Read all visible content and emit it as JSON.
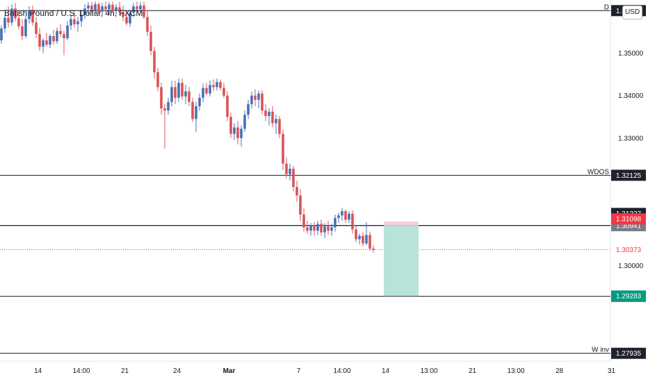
{
  "header": {
    "title": "British Pound / U.S. Dollar, 4h, FXCM",
    "currency_button": "USD"
  },
  "colors": {
    "up": "#4a6fb5",
    "down": "#d7545a",
    "line": "#131722",
    "tag_dark": "#1e222d",
    "tag_red": "#f23645",
    "tag_gray": "#787b86",
    "tag_green": "#089981",
    "profit_zone": "#b7e3d9",
    "loss_zone": "#f8cfd3",
    "current_price_line": "#f23645"
  },
  "chart_data": {
    "type": "candlestick",
    "symbol": "GBPUSD",
    "timeframe": "4h",
    "y_axis": {
      "range": [
        1.2775,
        1.3625
      ],
      "ticks": [
        {
          "value": 1.35,
          "label": "1.35000"
        },
        {
          "value": 1.34,
          "label": "1.34000"
        },
        {
          "value": 1.33,
          "label": "1.33000"
        },
        {
          "value": 1.3,
          "label": "1.30000"
        }
      ]
    },
    "x_axis": {
      "range": [
        0,
        108
      ],
      "ticks": [
        {
          "index": 10.5,
          "label": "14"
        },
        {
          "index": 23,
          "label": "14:00"
        },
        {
          "index": 35.5,
          "label": "21"
        },
        {
          "index": 50.5,
          "label": "24"
        },
        {
          "index": 65.5,
          "label": "Mar"
        },
        {
          "index": 85.5,
          "label": "7"
        },
        {
          "index": 98,
          "label": "14:00"
        },
        {
          "index": 110.5,
          "label": "14"
        },
        {
          "index": 123,
          "label": "13:00"
        },
        {
          "index": 135.5,
          "label": "21"
        },
        {
          "index": 148,
          "label": "13:00"
        },
        {
          "index": 160.5,
          "label": "28"
        },
        {
          "index": 175.5,
          "label": "31"
        }
      ]
    },
    "candles": [
      [
        1.353,
        1.3565,
        1.3522,
        1.3558
      ],
      [
        1.3558,
        1.359,
        1.3548,
        1.3583
      ],
      [
        1.3583,
        1.361,
        1.356,
        1.3572
      ],
      [
        1.3572,
        1.3615,
        1.3565,
        1.3605
      ],
      [
        1.3605,
        1.3618,
        1.3575,
        1.3582
      ],
      [
        1.3582,
        1.3598,
        1.3555,
        1.3563
      ],
      [
        1.3563,
        1.358,
        1.353,
        1.354
      ],
      [
        1.354,
        1.3588,
        1.3535,
        1.358
      ],
      [
        1.358,
        1.361,
        1.357,
        1.36
      ],
      [
        1.36,
        1.3612,
        1.3565,
        1.3572
      ],
      [
        1.3572,
        1.3585,
        1.3535,
        1.3545
      ],
      [
        1.3545,
        1.356,
        1.3505,
        1.3515
      ],
      [
        1.3515,
        1.3535,
        1.35,
        1.353
      ],
      [
        1.353,
        1.3548,
        1.3515,
        1.352
      ],
      [
        1.352,
        1.3545,
        1.3512,
        1.354
      ],
      [
        1.354,
        1.3555,
        1.352,
        1.3528
      ],
      [
        1.3528,
        1.356,
        1.3522,
        1.3552
      ],
      [
        1.3552,
        1.3568,
        1.3538,
        1.3545
      ],
      [
        1.3545,
        1.3552,
        1.3495,
        1.3535
      ],
      [
        1.3535,
        1.3575,
        1.353,
        1.3565
      ],
      [
        1.3565,
        1.359,
        1.3555,
        1.358
      ],
      [
        1.358,
        1.3598,
        1.356,
        1.3568
      ],
      [
        1.3568,
        1.3585,
        1.355,
        1.3575
      ],
      [
        1.3575,
        1.36,
        1.3562,
        1.359
      ],
      [
        1.359,
        1.3615,
        1.358,
        1.3605
      ],
      [
        1.3605,
        1.362,
        1.359,
        1.3612
      ],
      [
        1.3612,
        1.362,
        1.3595,
        1.36
      ],
      [
        1.36,
        1.3622,
        1.3592,
        1.3615
      ],
      [
        1.3615,
        1.362,
        1.3592,
        1.3598
      ],
      [
        1.3598,
        1.3618,
        1.359,
        1.361
      ],
      [
        1.361,
        1.3621,
        1.3595,
        1.3603
      ],
      [
        1.3603,
        1.362,
        1.359,
        1.3614
      ],
      [
        1.3614,
        1.3621,
        1.3596,
        1.36
      ],
      [
        1.36,
        1.3615,
        1.359,
        1.3608
      ],
      [
        1.3608,
        1.3621,
        1.359,
        1.3597
      ],
      [
        1.3597,
        1.3612,
        1.3575,
        1.3585
      ],
      [
        1.3585,
        1.3598,
        1.3565,
        1.357
      ],
      [
        1.357,
        1.36,
        1.3562,
        1.3595
      ],
      [
        1.3595,
        1.3618,
        1.3585,
        1.361
      ],
      [
        1.361,
        1.3621,
        1.3595,
        1.3603
      ],
      [
        1.3603,
        1.3621,
        1.3595,
        1.3612
      ],
      [
        1.3612,
        1.3621,
        1.358,
        1.3585
      ],
      [
        1.3585,
        1.36,
        1.354,
        1.355
      ],
      [
        1.355,
        1.3565,
        1.3495,
        1.3505
      ],
      [
        1.3505,
        1.3515,
        1.344,
        1.3455
      ],
      [
        1.3455,
        1.3465,
        1.341,
        1.342
      ],
      [
        1.342,
        1.343,
        1.3355,
        1.337
      ],
      [
        1.337,
        1.338,
        1.3275,
        1.3365
      ],
      [
        1.3365,
        1.3395,
        1.3355,
        1.3385
      ],
      [
        1.3385,
        1.3435,
        1.3375,
        1.342
      ],
      [
        1.342,
        1.3435,
        1.338,
        1.3395
      ],
      [
        1.3395,
        1.344,
        1.3385,
        1.343
      ],
      [
        1.343,
        1.344,
        1.339,
        1.3398
      ],
      [
        1.3398,
        1.3425,
        1.338,
        1.341
      ],
      [
        1.341,
        1.342,
        1.3375,
        1.3385
      ],
      [
        1.3385,
        1.3395,
        1.3338,
        1.3345
      ],
      [
        1.3345,
        1.3385,
        1.3315,
        1.3375
      ],
      [
        1.3375,
        1.3405,
        1.3365,
        1.3395
      ],
      [
        1.3395,
        1.3428,
        1.3385,
        1.3418
      ],
      [
        1.3418,
        1.343,
        1.34,
        1.3405
      ],
      [
        1.3405,
        1.3435,
        1.3398,
        1.3425
      ],
      [
        1.3425,
        1.3438,
        1.341,
        1.342
      ],
      [
        1.342,
        1.344,
        1.3412,
        1.3432
      ],
      [
        1.3432,
        1.3438,
        1.3412,
        1.3418
      ],
      [
        1.3418,
        1.343,
        1.3395,
        1.34
      ],
      [
        1.34,
        1.341,
        1.334,
        1.335
      ],
      [
        1.335,
        1.336,
        1.33,
        1.331
      ],
      [
        1.331,
        1.3335,
        1.3295,
        1.3325
      ],
      [
        1.3325,
        1.334,
        1.3285,
        1.33
      ],
      [
        1.33,
        1.333,
        1.328,
        1.3322
      ],
      [
        1.3322,
        1.3365,
        1.3315,
        1.3355
      ],
      [
        1.3355,
        1.339,
        1.3345,
        1.338
      ],
      [
        1.338,
        1.341,
        1.337,
        1.34
      ],
      [
        1.34,
        1.3415,
        1.3375,
        1.339
      ],
      [
        1.339,
        1.3412,
        1.337,
        1.3405
      ],
      [
        1.3405,
        1.3412,
        1.3355,
        1.3365
      ],
      [
        1.3365,
        1.338,
        1.334,
        1.3352
      ],
      [
        1.3352,
        1.337,
        1.333,
        1.3362
      ],
      [
        1.3362,
        1.3375,
        1.3325,
        1.3335
      ],
      [
        1.3335,
        1.3355,
        1.331,
        1.3345
      ],
      [
        1.3345,
        1.3352,
        1.33,
        1.331
      ],
      [
        1.331,
        1.332,
        1.3225,
        1.324
      ],
      [
        1.324,
        1.3255,
        1.3205,
        1.3215
      ],
      [
        1.3215,
        1.324,
        1.32,
        1.3228
      ],
      [
        1.3228,
        1.3235,
        1.3175,
        1.3185
      ],
      [
        1.3185,
        1.32,
        1.315,
        1.3165
      ],
      [
        1.3165,
        1.318,
        1.3105,
        1.312
      ],
      [
        1.312,
        1.3135,
        1.308,
        1.309
      ],
      [
        1.309,
        1.3105,
        1.3075,
        1.3082
      ],
      [
        1.3082,
        1.31,
        1.307,
        1.3095
      ],
      [
        1.3095,
        1.3102,
        1.307,
        1.3082
      ],
      [
        1.3082,
        1.3105,
        1.3072,
        1.3098
      ],
      [
        1.3098,
        1.3108,
        1.307,
        1.3078
      ],
      [
        1.3078,
        1.31,
        1.3065,
        1.3092
      ],
      [
        1.3092,
        1.3105,
        1.3072,
        1.3082
      ],
      [
        1.3082,
        1.3098,
        1.307,
        1.309
      ],
      [
        1.309,
        1.312,
        1.308,
        1.3112
      ],
      [
        1.3112,
        1.3125,
        1.31,
        1.3118
      ],
      [
        1.3118,
        1.3135,
        1.3105,
        1.3128
      ],
      [
        1.3128,
        1.3132,
        1.31,
        1.3108
      ],
      [
        1.3108,
        1.3128,
        1.31,
        1.3122
      ],
      [
        1.3122,
        1.313,
        1.3075,
        1.3085
      ],
      [
        1.3085,
        1.3095,
        1.3055,
        1.3062
      ],
      [
        1.3062,
        1.3075,
        1.305,
        1.307
      ],
      [
        1.307,
        1.3078,
        1.3045,
        1.3052
      ],
      [
        1.3052,
        1.3102,
        1.3048,
        1.3072
      ],
      [
        1.3072,
        1.308,
        1.3035,
        1.304
      ],
      [
        1.304,
        1.3048,
        1.303,
        1.3037
      ]
    ],
    "horizontal_levels": [
      {
        "price": 1.36,
        "label": "D",
        "tag": "1.36000"
      },
      {
        "price": 1.32125,
        "label": "WDOS",
        "tag": "1.32125"
      },
      {
        "price": 1.30943,
        "label": "",
        "tag": "1.30943"
      },
      {
        "price": 1.30941,
        "label": "",
        "tag": "1.30941"
      },
      {
        "price": 1.29277,
        "label": "",
        "tag": "1.29277"
      },
      {
        "price": 1.27935,
        "label": "W inv",
        "tag": "1.27935"
      }
    ],
    "price_tags": [
      {
        "price": 1.31227,
        "tag": "1.31227",
        "color": "tag_dark"
      },
      {
        "price": 1.31098,
        "tag": "1.31098",
        "color": "tag_red"
      },
      {
        "price": 1.30373,
        "tag": "1.30373",
        "color": "current"
      },
      {
        "price": 1.29283,
        "tag": "1.29283",
        "color": "tag_green"
      }
    ],
    "position": {
      "type": "short",
      "entry": 1.30941,
      "stop": 1.3104,
      "target": 1.29283,
      "start_index": 110,
      "end_index": 120
    },
    "current_price": 1.30373
  }
}
